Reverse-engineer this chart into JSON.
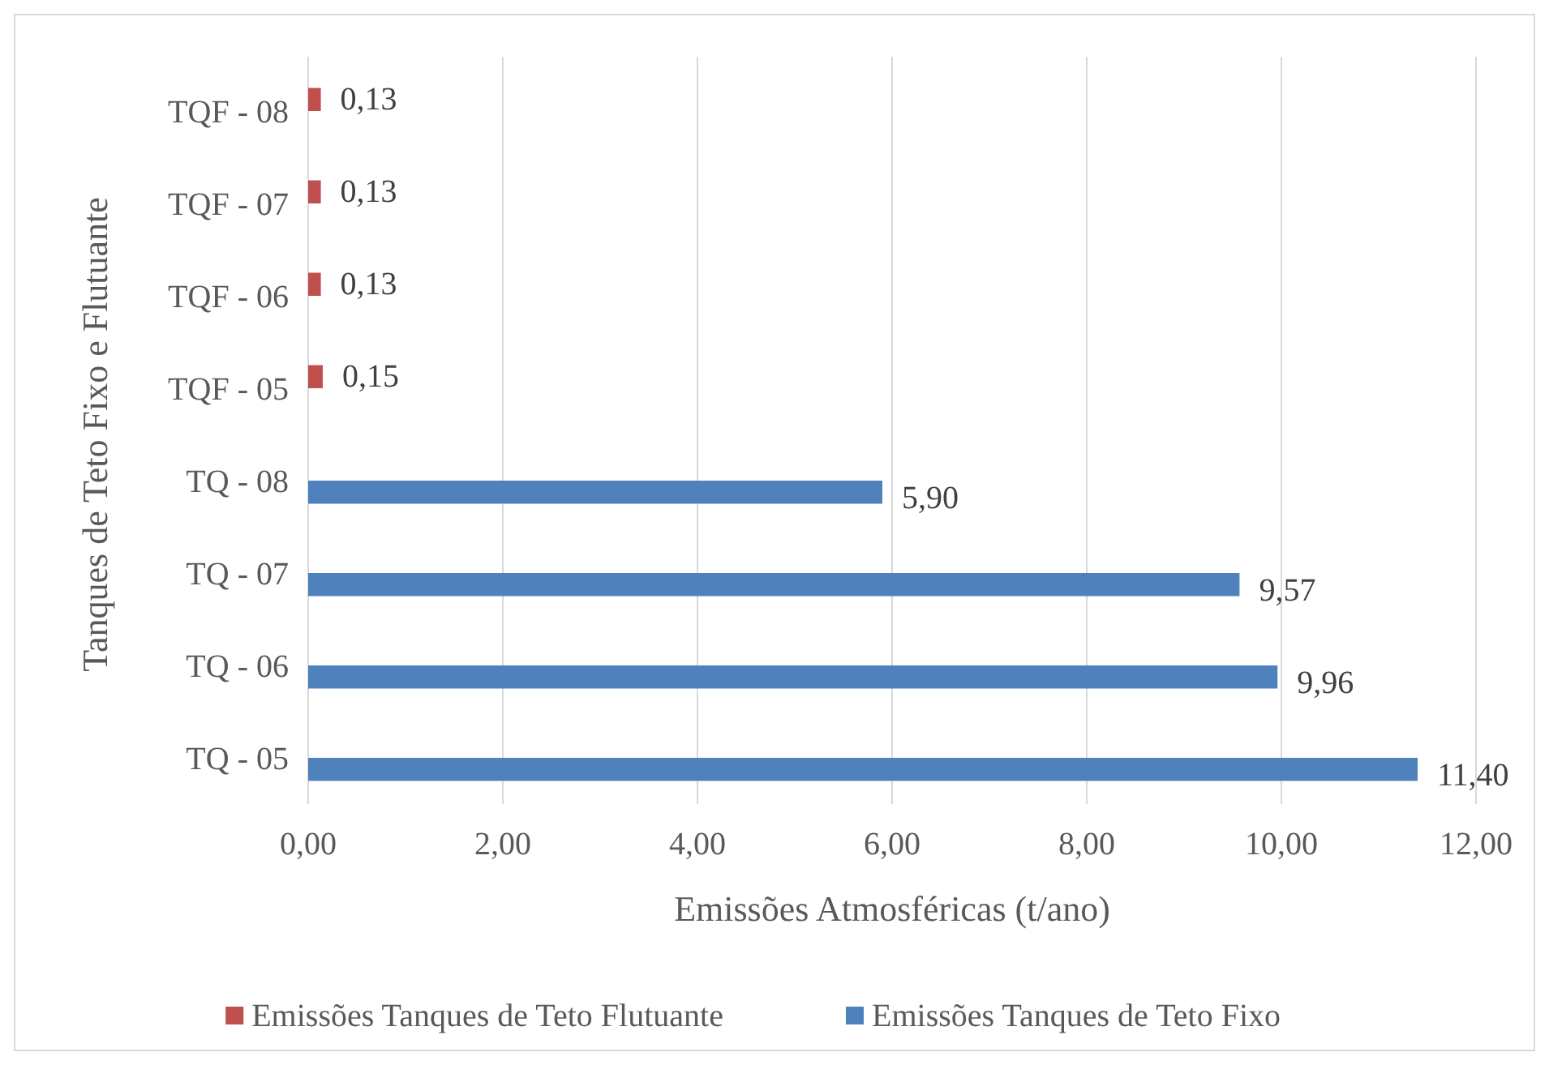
{
  "chart_data": {
    "type": "bar",
    "orientation": "horizontal",
    "xlabel": "Emissões Atmosféricas (t/ano)",
    "ylabel": "Tanques de Teto Fixo e Flutuante",
    "categories": [
      "TQF - 08",
      "TQF - 07",
      "TQF - 06",
      "TQF - 05",
      "TQ - 08",
      "TQ - 07",
      "TQ - 06",
      "TQ - 05"
    ],
    "series": [
      {
        "name": "Emissões Tanques de Teto Flutuante",
        "color": "#c0504d",
        "values": [
          0.13,
          0.13,
          0.13,
          0.15,
          null,
          null,
          null,
          null
        ],
        "value_labels": [
          "0,13",
          "0,13",
          "0,13",
          "0,15",
          null,
          null,
          null,
          null
        ]
      },
      {
        "name": "Emissões Tanques de Teto Fixo",
        "color": "#4f81bd",
        "values": [
          null,
          null,
          null,
          null,
          5.9,
          9.57,
          9.96,
          11.4
        ],
        "value_labels": [
          null,
          null,
          null,
          null,
          "5,90",
          "9,57",
          "9,96",
          "11,40"
        ]
      }
    ],
    "xlim": [
      0,
      12
    ],
    "xticks": [
      {
        "value": 0,
        "label": "0,00"
      },
      {
        "value": 2,
        "label": "2,00"
      },
      {
        "value": 4,
        "label": "4,00"
      },
      {
        "value": 6,
        "label": "6,00"
      },
      {
        "value": 8,
        "label": "8,00"
      },
      {
        "value": 10,
        "label": "10,00"
      },
      {
        "value": 12,
        "label": "12,00"
      }
    ],
    "grid": "x",
    "legend": "bottom"
  }
}
